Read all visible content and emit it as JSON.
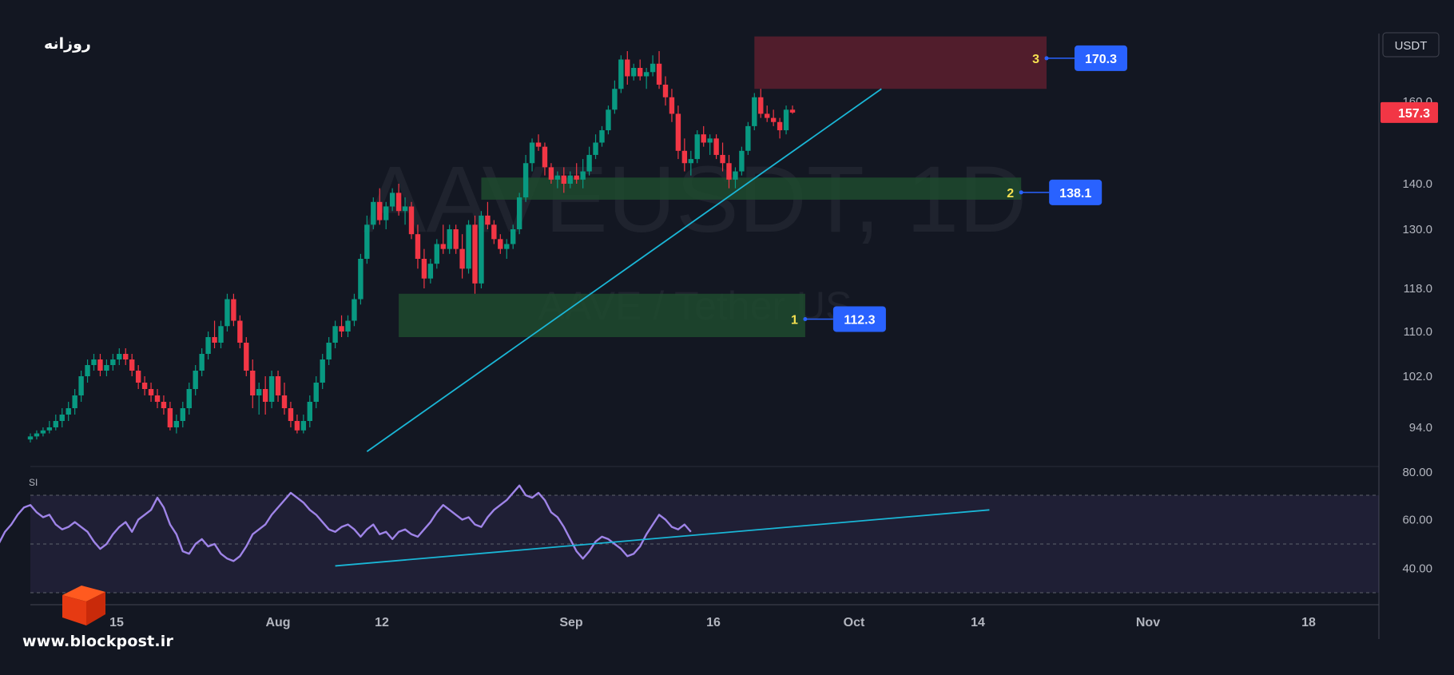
{
  "header": {
    "title_fa": "روزانه",
    "currency": "USDT"
  },
  "watermark": {
    "symbol": "AAVEUSDT, 1D",
    "description": "AAVE / Tether US"
  },
  "brand": {
    "site": "www.blockpost.ir"
  },
  "rsi_label": "SI",
  "colors": {
    "bg": "#131722",
    "up": "#089981",
    "down": "#f23645",
    "trendline": "#1ab6d6",
    "rsi": "#9f84e8",
    "label_blue": "#2962ff",
    "zone_green": "#1f4a2e",
    "zone_red": "#5d1f2e"
  },
  "chart_data": {
    "type": "candlestick",
    "price_axis": {
      "ticks": [
        80.0,
        94.0,
        102.0,
        110.0,
        118.0,
        130.0,
        140.0,
        160.0
      ],
      "tick_labels": [
        "80.00",
        "94.0",
        "102.0",
        "110.0",
        "118.0",
        "130.0",
        "140.0",
        "160.0"
      ],
      "range": [
        80,
        180
      ]
    },
    "rsi_axis": {
      "ticks": [
        40,
        60,
        80
      ],
      "tick_labels": [
        "40.00",
        "60.00",
        "80.00"
      ],
      "range": [
        25,
        82
      ],
      "band": [
        30,
        70
      ],
      "mid": 50
    },
    "x_axis": {
      "labels": [
        "15",
        "Aug",
        "12",
        "Sep",
        "16",
        "Oct",
        "14",
        "Nov",
        "18"
      ]
    },
    "last_price": {
      "value": 157.3,
      "label": "157.3"
    },
    "zones": [
      {
        "id": "1",
        "label": "1",
        "price_label": "112.3",
        "level": 112.3,
        "top": 117,
        "bottom": 109,
        "kind": "support",
        "start_day": 58,
        "end_day": 122
      },
      {
        "id": "2",
        "label": "2",
        "price_label": "138.1",
        "level": 138.1,
        "top": 141.5,
        "bottom": 136.5,
        "kind": "support",
        "start_day": 71,
        "end_day": 156
      },
      {
        "id": "3",
        "label": "3",
        "price_label": "170.3",
        "level": 170.3,
        "top": 175.5,
        "bottom": 163,
        "kind": "resistance",
        "start_day": 114,
        "end_day": 160
      }
    ],
    "trendline_price": {
      "from": {
        "day": 53,
        "price": 86
      },
      "to": {
        "day": 134,
        "price": 163
      }
    },
    "trendline_rsi": {
      "from": {
        "day": 48,
        "value": 41
      },
      "to": {
        "day": 151,
        "value": 64
      }
    },
    "candles": [
      [
        0,
        90,
        92,
        89,
        91
      ],
      [
        1,
        91,
        93,
        90,
        92
      ],
      [
        2,
        92,
        94,
        91,
        93
      ],
      [
        3,
        93,
        95,
        92,
        94
      ],
      [
        4,
        94,
        96,
        93,
        95
      ],
      [
        5,
        95,
        97,
        94,
        96
      ],
      [
        6,
        96,
        98,
        95,
        97
      ],
      [
        7,
        97,
        100,
        96,
        99
      ],
      [
        8,
        99,
        103,
        98,
        102
      ],
      [
        9,
        102,
        105,
        101,
        104
      ],
      [
        10,
        104,
        106,
        103,
        105
      ],
      [
        11,
        105,
        106,
        102,
        103
      ],
      [
        12,
        103,
        105,
        102,
        104
      ],
      [
        13,
        104,
        106,
        103,
        105
      ],
      [
        14,
        105,
        107,
        104,
        106
      ],
      [
        15,
        106,
        107,
        104,
        105
      ],
      [
        16,
        105,
        106,
        102,
        103
      ],
      [
        17,
        103,
        104,
        100,
        101
      ],
      [
        18,
        101,
        102,
        99,
        100
      ],
      [
        19,
        100,
        101,
        98,
        99
      ],
      [
        20,
        99,
        100,
        97,
        98
      ],
      [
        21,
        98,
        99,
        96,
        97
      ],
      [
        22,
        97,
        98,
        93,
        94
      ],
      [
        23,
        94,
        96,
        92,
        95
      ],
      [
        24,
        95,
        98,
        94,
        97
      ],
      [
        25,
        97,
        101,
        96,
        100
      ],
      [
        26,
        100,
        104,
        99,
        103
      ],
      [
        27,
        103,
        107,
        102,
        106
      ],
      [
        28,
        106,
        110,
        105,
        109
      ],
      [
        29,
        109,
        112,
        107,
        108
      ],
      [
        30,
        108,
        112,
        107,
        111
      ],
      [
        31,
        111,
        117,
        110,
        116
      ],
      [
        32,
        116,
        117,
        111,
        112
      ],
      [
        33,
        112,
        113,
        107,
        108
      ],
      [
        34,
        108,
        109,
        102,
        103
      ],
      [
        35,
        103,
        105,
        97,
        99
      ],
      [
        36,
        99,
        101,
        96,
        100
      ],
      [
        37,
        100,
        102,
        96,
        98
      ],
      [
        38,
        98,
        103,
        97,
        102
      ],
      [
        39,
        102,
        103,
        98,
        99
      ],
      [
        40,
        99,
        101,
        96,
        97
      ],
      [
        41,
        97,
        98,
        94,
        95
      ],
      [
        42,
        95,
        96,
        92,
        93
      ],
      [
        43,
        93,
        96,
        92,
        95
      ],
      [
        44,
        95,
        99,
        94,
        98
      ],
      [
        45,
        98,
        102,
        97,
        101
      ],
      [
        46,
        101,
        106,
        100,
        105
      ],
      [
        47,
        105,
        109,
        104,
        108
      ],
      [
        48,
        108,
        112,
        107,
        111
      ],
      [
        49,
        111,
        113,
        109,
        110
      ],
      [
        50,
        110,
        113,
        109,
        112
      ],
      [
        51,
        112,
        117,
        111,
        116
      ],
      [
        52,
        116,
        125,
        115,
        124
      ],
      [
        53,
        124,
        133,
        123,
        131
      ],
      [
        54,
        131,
        137,
        130,
        136
      ],
      [
        55,
        136,
        139,
        131,
        132
      ],
      [
        56,
        132,
        136,
        130,
        135
      ],
      [
        57,
        135,
        139,
        134,
        138
      ],
      [
        58,
        138,
        140,
        133,
        134
      ],
      [
        59,
        134,
        137,
        131,
        135
      ],
      [
        60,
        135,
        136,
        128,
        129
      ],
      [
        61,
        129,
        131,
        122,
        124
      ],
      [
        62,
        124,
        126,
        118,
        120
      ],
      [
        63,
        120,
        124,
        119,
        123
      ],
      [
        64,
        123,
        128,
        122,
        127
      ],
      [
        65,
        127,
        131,
        125,
        126
      ],
      [
        66,
        126,
        131,
        125,
        130
      ],
      [
        67,
        130,
        131,
        125,
        126
      ],
      [
        68,
        126,
        129,
        120,
        122
      ],
      [
        69,
        122,
        132,
        121,
        131
      ],
      [
        70,
        131,
        133,
        117,
        119
      ],
      [
        71,
        119,
        134,
        118,
        133
      ],
      [
        72,
        133,
        136,
        130,
        131
      ],
      [
        73,
        131,
        132,
        127,
        128
      ],
      [
        74,
        128,
        129,
        125,
        126
      ],
      [
        75,
        126,
        128,
        124,
        127
      ],
      [
        76,
        127,
        131,
        126,
        130
      ],
      [
        77,
        130,
        138,
        129,
        137
      ],
      [
        78,
        137,
        147,
        136,
        145
      ],
      [
        79,
        145,
        151,
        143,
        150
      ],
      [
        80,
        150,
        152,
        148,
        149
      ],
      [
        81,
        149,
        150,
        142,
        144
      ],
      [
        82,
        144,
        145,
        140,
        141
      ],
      [
        83,
        141,
        143,
        139,
        142
      ],
      [
        84,
        142,
        144,
        138,
        140
      ],
      [
        85,
        140,
        143,
        139,
        142
      ],
      [
        86,
        142,
        145,
        140,
        141
      ],
      [
        87,
        141,
        146,
        139,
        143
      ],
      [
        88,
        143,
        149,
        142,
        147
      ],
      [
        89,
        147,
        152,
        146,
        150
      ],
      [
        90,
        150,
        154,
        149,
        153
      ],
      [
        91,
        153,
        159,
        152,
        158
      ],
      [
        92,
        158,
        165,
        157,
        163
      ],
      [
        93,
        163,
        171,
        162,
        170
      ],
      [
        94,
        170,
        172,
        164,
        166
      ],
      [
        95,
        166,
        169,
        165,
        168
      ],
      [
        96,
        168,
        170,
        165,
        166
      ],
      [
        97,
        166,
        168,
        163,
        167
      ],
      [
        98,
        167,
        171,
        166,
        169
      ],
      [
        99,
        169,
        172,
        163,
        164
      ],
      [
        100,
        164,
        166,
        159,
        161
      ],
      [
        101,
        161,
        163,
        155,
        157
      ],
      [
        102,
        157,
        159,
        146,
        148
      ],
      [
        103,
        148,
        151,
        143,
        145
      ],
      [
        104,
        145,
        148,
        142,
        146
      ],
      [
        105,
        146,
        153,
        145,
        152
      ],
      [
        106,
        152,
        154,
        149,
        150
      ],
      [
        107,
        150,
        152,
        147,
        151
      ],
      [
        108,
        151,
        152,
        146,
        147
      ],
      [
        109,
        147,
        150,
        143,
        145
      ],
      [
        110,
        145,
        147,
        139,
        141
      ],
      [
        111,
        141,
        144,
        139,
        143
      ],
      [
        112,
        143,
        149,
        142,
        148
      ],
      [
        113,
        148,
        155,
        147,
        154
      ],
      [
        114,
        154,
        162,
        153,
        161
      ],
      [
        115,
        161,
        163,
        156,
        157
      ],
      [
        116,
        157,
        159,
        155,
        156
      ],
      [
        117,
        156,
        158,
        154,
        155
      ],
      [
        118,
        155,
        156,
        151,
        153
      ],
      [
        119,
        153,
        159,
        152,
        158
      ],
      [
        120,
        158,
        159,
        157,
        157.3
      ]
    ],
    "rsi": [
      45,
      43,
      47,
      50,
      55,
      58,
      62,
      65,
      66,
      63,
      61,
      62,
      58,
      56,
      57,
      59,
      57,
      55,
      51,
      48,
      50,
      54,
      57,
      59,
      55,
      60,
      62,
      64,
      69,
      65,
      58,
      54,
      47,
      46,
      50,
      52,
      49,
      50,
      46,
      44,
      43,
      45,
      49,
      54,
      56,
      58,
      62,
      65,
      68,
      71,
      69,
      67,
      64,
      62,
      59,
      56,
      55,
      57,
      58,
      56,
      53,
      56,
      58,
      54,
      55,
      52,
      55,
      56,
      54,
      53,
      56,
      59,
      63,
      66,
      64,
      62,
      60,
      61,
      58,
      57,
      61,
      64,
      66,
      68,
      71,
      74,
      70,
      69,
      71,
      68,
      63,
      61,
      57,
      52,
      47,
      44,
      47,
      51,
      53,
      52,
      50,
      48,
      45,
      46,
      49,
      54,
      58,
      62,
      60,
      57,
      56,
      58,
      55
    ]
  }
}
